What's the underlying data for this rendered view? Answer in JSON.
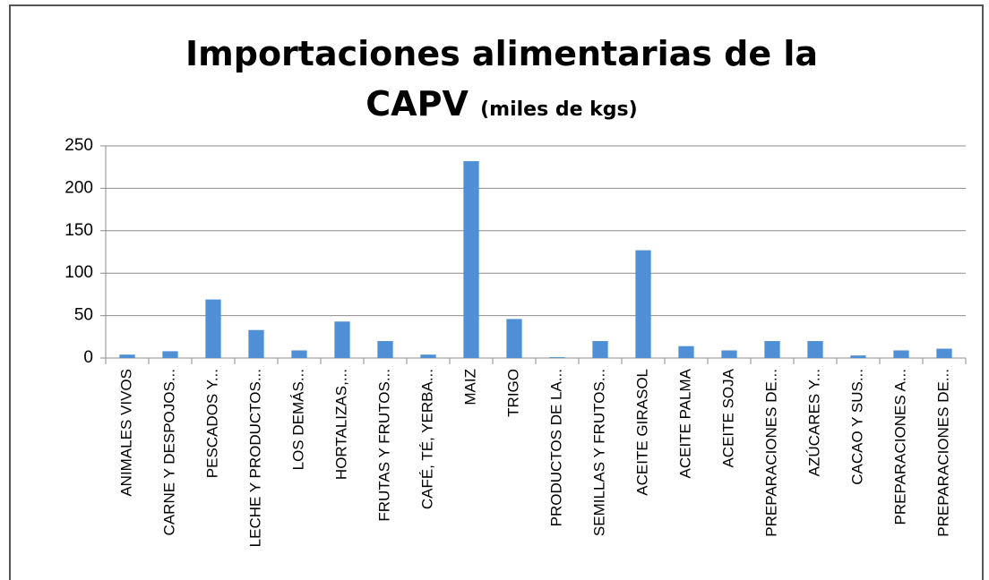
{
  "chart_data": {
    "type": "bar",
    "title": "Importaciones alimentarias de la CAPV",
    "subtitle": "(miles de kgs)",
    "categories": [
      "ANIMALES VIVOS",
      "CARNE Y DESPOJOS...",
      "PESCADOS Y...",
      "LECHE Y PRODUCTOS...",
      "LOS DEMÁS...",
      "HORTALIZAS,...",
      "FRUTAS Y FRUTOS...",
      "CAFÉ, TÉ, YERBA...",
      "MAIZ",
      "TRIGO",
      "PRODUCTOS DE LA...",
      "SEMILLAS Y FRUTOS...",
      "ACEITE GIRASOL",
      "ACEITE PALMA",
      "ACEITE SOJA",
      "PREPARACIONES DE...",
      "AZÚCARES Y...",
      "CACAO Y SUS...",
      "PREPARACIONES A...",
      "PREPARACIONES DE..."
    ],
    "values": [
      4,
      8,
      69,
      33,
      9,
      43,
      20,
      4,
      232,
      46,
      1,
      20,
      127,
      14,
      9,
      20,
      20,
      3,
      9,
      11
    ],
    "color": "#4f8fd6",
    "ylim": [
      0,
      250
    ],
    "yticks": [
      0,
      50,
      100,
      150,
      200,
      250
    ],
    "grid": true
  }
}
